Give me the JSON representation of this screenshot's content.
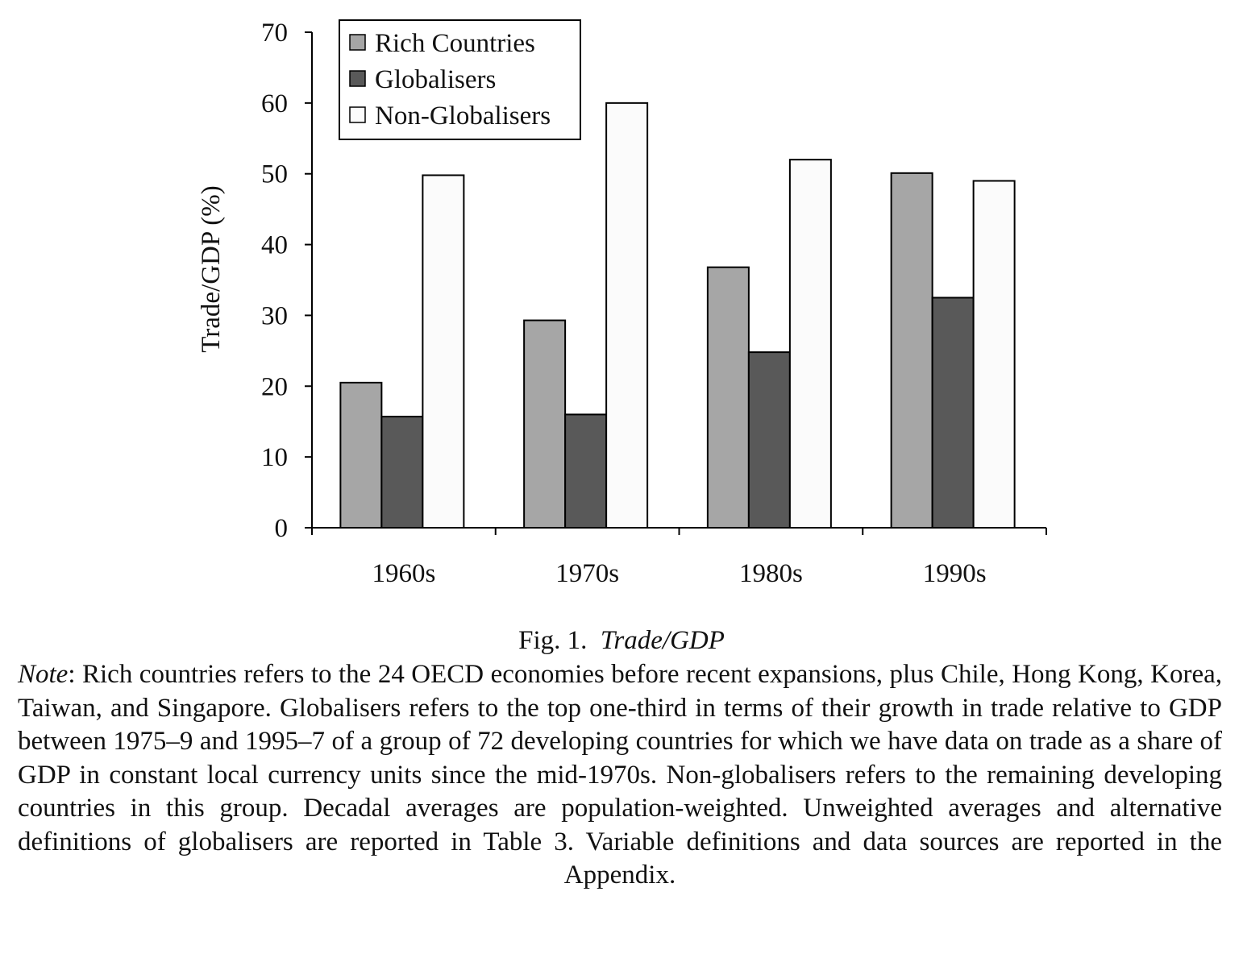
{
  "chart_data": {
    "type": "bar",
    "categories": [
      "1960s",
      "1970s",
      "1980s",
      "1990s"
    ],
    "series": [
      {
        "name": "Rich Countries",
        "values": [
          20.5,
          29.3,
          36.8,
          50.1
        ],
        "color": "#a6a6a6"
      },
      {
        "name": "Globalisers",
        "values": [
          15.7,
          16.0,
          24.8,
          32.5
        ],
        "color": "#595959"
      },
      {
        "name": "Non-Globalisers",
        "values": [
          49.8,
          60.0,
          52.0,
          49.0
        ],
        "color": "#fbfbfb"
      }
    ],
    "ylabel": "Trade/GDP (%)",
    "xlabel": "",
    "ylim": [
      0,
      70
    ],
    "yticks": [
      "0",
      "10",
      "20",
      "30",
      "40",
      "50",
      "60",
      "70"
    ],
    "grid": false,
    "legend_position": "top-left"
  },
  "caption": {
    "figure_number": "Fig. 1.",
    "title": "Trade/GDP"
  },
  "note": {
    "label": "Note",
    "text": ": Rich countries refers to the 24 OECD economies before recent expansions, plus Chile, Hong Kong, Korea, Taiwan, and Singapore. Globalisers refers to the top one-third in terms of their growth in trade relative to GDP between 1975–9 and 1995–7 of a group of 72 developing countries for which we have data on trade as a share of GDP in constant local currency units since the mid-1970s. Non-globalisers refers to the remaining developing countries in this group. Decadal averages are population-weighted. Unweighted averages and alternative definitions of globalisers are reported in Table 3. Variable definitions and data sources are reported in the Appendix."
  }
}
